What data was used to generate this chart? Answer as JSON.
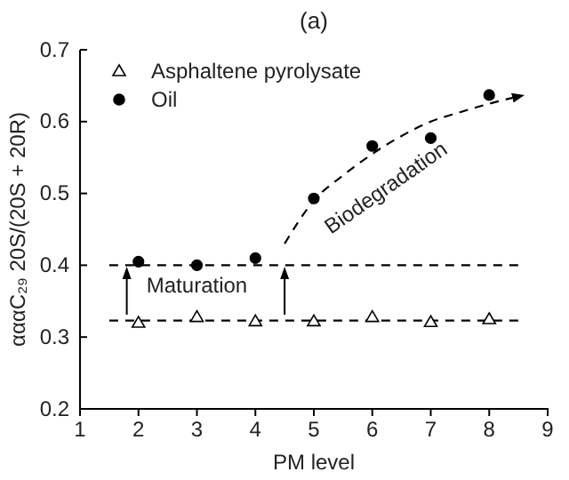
{
  "chart_data": {
    "type": "scatter",
    "title": "(a)",
    "xlabel": "PM level",
    "ylabel": "αααC₂₉ 20S/(20S + 20R)",
    "x": [
      2,
      3,
      4,
      5,
      6,
      7,
      8
    ],
    "series": [
      {
        "name": "Asphaltene pyrolysate",
        "color": "#000000",
        "marker": "triangle",
        "values": [
          0.32,
          0.328,
          0.322,
          0.322,
          0.328,
          0.321,
          0.325
        ]
      },
      {
        "name": "Oil",
        "color": "#000000",
        "marker": "circle",
        "values": [
          0.405,
          0.4,
          0.41,
          0.493,
          0.566,
          0.577,
          0.637
        ]
      },
      {
        "type": "line",
        "color": "#000000",
        "marker": "none",
        "line_style": "dashed",
        "x": [
          1.5,
          8.5
        ],
        "values": [
          0.4,
          0.4
        ]
      },
      {
        "type": "line",
        "color": "#000000",
        "marker": "none",
        "line_style": "dashed",
        "x": [
          1.5,
          8.5
        ],
        "values": [
          0.323,
          0.323
        ]
      },
      {
        "type": "line",
        "color": "#000000",
        "marker": "none",
        "line_style": "dashed",
        "x": [
          4.5,
          5,
          5.5,
          6,
          6.5,
          7,
          7.5,
          8,
          8.5
        ],
        "values": [
          0.43,
          0.49,
          0.525,
          0.555,
          0.58,
          0.6,
          0.613,
          0.625,
          0.635
        ]
      }
    ],
    "xlim": [
      1,
      9
    ],
    "xticks": [
      1,
      2,
      3,
      4,
      5,
      6,
      7,
      8,
      9
    ],
    "ylim": [
      0.2,
      0.7
    ],
    "yticks": [
      {
        "value": 0.2,
        "label": "0.2"
      },
      {
        "value": 0.3,
        "label": "0.3"
      },
      {
        "value": 0.4,
        "label": "0.4"
      },
      {
        "value": 0.5,
        "label": "0.5"
      },
      {
        "value": 0.6,
        "label": "0.6"
      },
      {
        "value": 0.7,
        "label": "0.7"
      }
    ],
    "grid": false,
    "legend": "top left",
    "annotations": [
      "Maturation",
      "Biodegradation"
    ]
  }
}
